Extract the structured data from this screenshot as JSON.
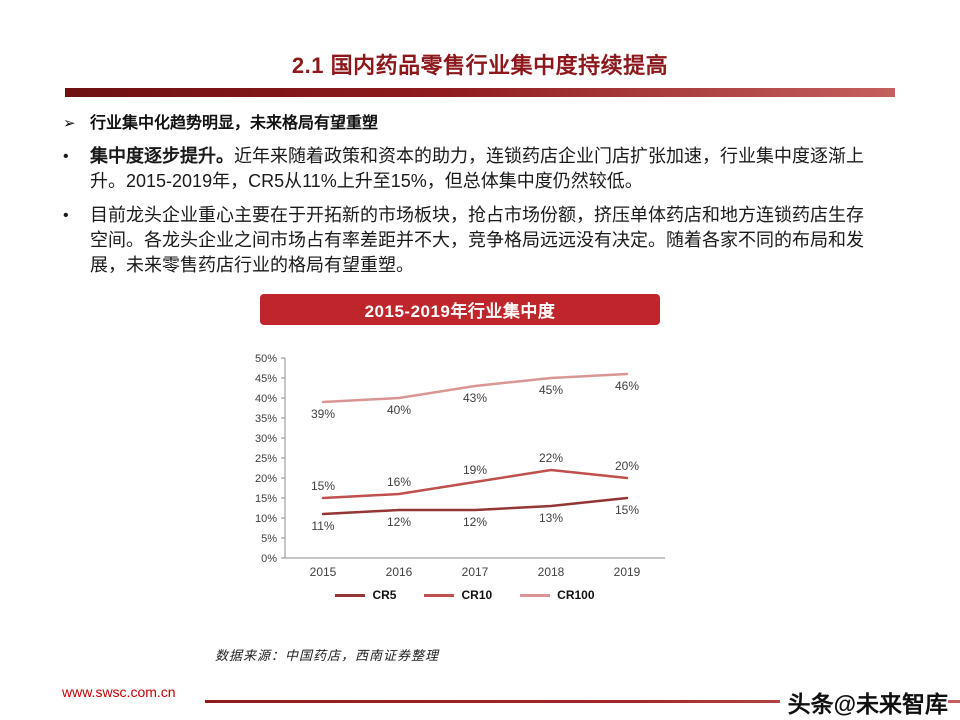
{
  "slide": {
    "title": "2.1 国内药品零售行业集中度持续提高",
    "bullets": {
      "arrow_heading": "行业集中化趋势明显，未来格局有望重塑",
      "b1_bold": "集中度逐步提升。",
      "b1_text": "近年来随着政策和资本的助力，连锁药店企业门店扩张加速，行业集中度逐渐上升。2015-2019年，CR5从11%上升至15%，但总体集中度仍然较低。",
      "b2_text": "目前龙头企业重心主要在于开拓新的市场板块，抢占市场份额，挤压单体药店和地方连锁药店生存空间。各龙头企业之间市场占有率差距并不大，竞争格局远远没有决定。随着各家不同的布局和发展，未来零售药店行业的格局有望重塑。"
    },
    "chart_banner": "2015-2019年行业集中度",
    "source": "数据来源：中国药店，西南证券整理",
    "footer": {
      "website": "www.swsc.com.cn",
      "watermark": "头条@未来智库"
    }
  },
  "colors": {
    "accent_dark": "#6e1012",
    "accent": "#bf262b",
    "title_text": "#8c181b",
    "cr5": "#943634",
    "cr10": "#c0504d",
    "cr100": "#d99694"
  },
  "chart_data": {
    "type": "line",
    "title": "2015-2019年行业集中度",
    "categories": [
      "2015",
      "2016",
      "2017",
      "2018",
      "2019"
    ],
    "series": [
      {
        "name": "CR5",
        "values": [
          11,
          12,
          12,
          13,
          15
        ],
        "color": "#943634",
        "label_position": "below"
      },
      {
        "name": "CR10",
        "values": [
          15,
          16,
          19,
          22,
          20
        ],
        "color": "#c0504d",
        "label_position": "above"
      },
      {
        "name": "CR100",
        "values": [
          39,
          40,
          43,
          45,
          46
        ],
        "color": "#d99694",
        "label_position": "below"
      }
    ],
    "xlabel": "",
    "ylabel": "",
    "ylim": [
      0,
      50
    ],
    "ytick_step": 5,
    "ytick_labels": [
      "0%",
      "5%",
      "10%",
      "15%",
      "20%",
      "25%",
      "30%",
      "35%",
      "40%",
      "45%",
      "50%"
    ],
    "data_labels": true,
    "grid": false,
    "legend_position": "bottom"
  }
}
